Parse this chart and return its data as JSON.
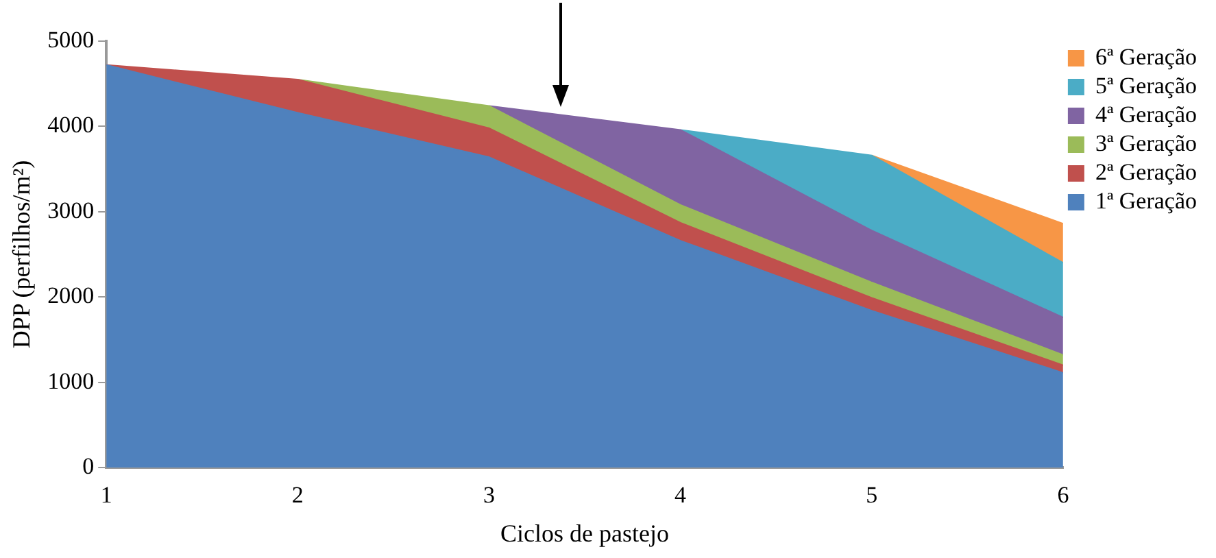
{
  "chart_data": {
    "type": "area",
    "xlabel": "Ciclos de pastejo",
    "ylabel": "DPP (perfilhos/m²)",
    "x": [
      1,
      2,
      3,
      4,
      5,
      6
    ],
    "stacked": true,
    "series": [
      {
        "name": "1ª Geração",
        "color": "#4f81bd",
        "values": [
          4720,
          4160,
          3640,
          2660,
          1840,
          1110
        ]
      },
      {
        "name": "2ª Geração",
        "color": "#c0504d",
        "values": [
          0,
          390,
          340,
          210,
          150,
          90
        ]
      },
      {
        "name": "3ª Geração",
        "color": "#9bbb59",
        "values": [
          null,
          0,
          260,
          210,
          180,
          120
        ]
      },
      {
        "name": "4ª Geração",
        "color": "#8064a2",
        "values": [
          null,
          null,
          0,
          880,
          610,
          440
        ]
      },
      {
        "name": "5ª Geração",
        "color": "#4bacc6",
        "values": [
          null,
          null,
          null,
          0,
          880,
          640
        ]
      },
      {
        "name": "6ª Geração",
        "color": "#f79646",
        "values": [
          null,
          null,
          null,
          null,
          0,
          460
        ]
      }
    ],
    "xlim": [
      1,
      6
    ],
    "xticks": [
      1,
      2,
      3,
      4,
      5,
      6
    ],
    "ylim": [
      0,
      5000
    ],
    "yticks": [
      0,
      1000,
      2000,
      3000,
      4000,
      5000
    ],
    "grid": false,
    "legend": "right"
  }
}
